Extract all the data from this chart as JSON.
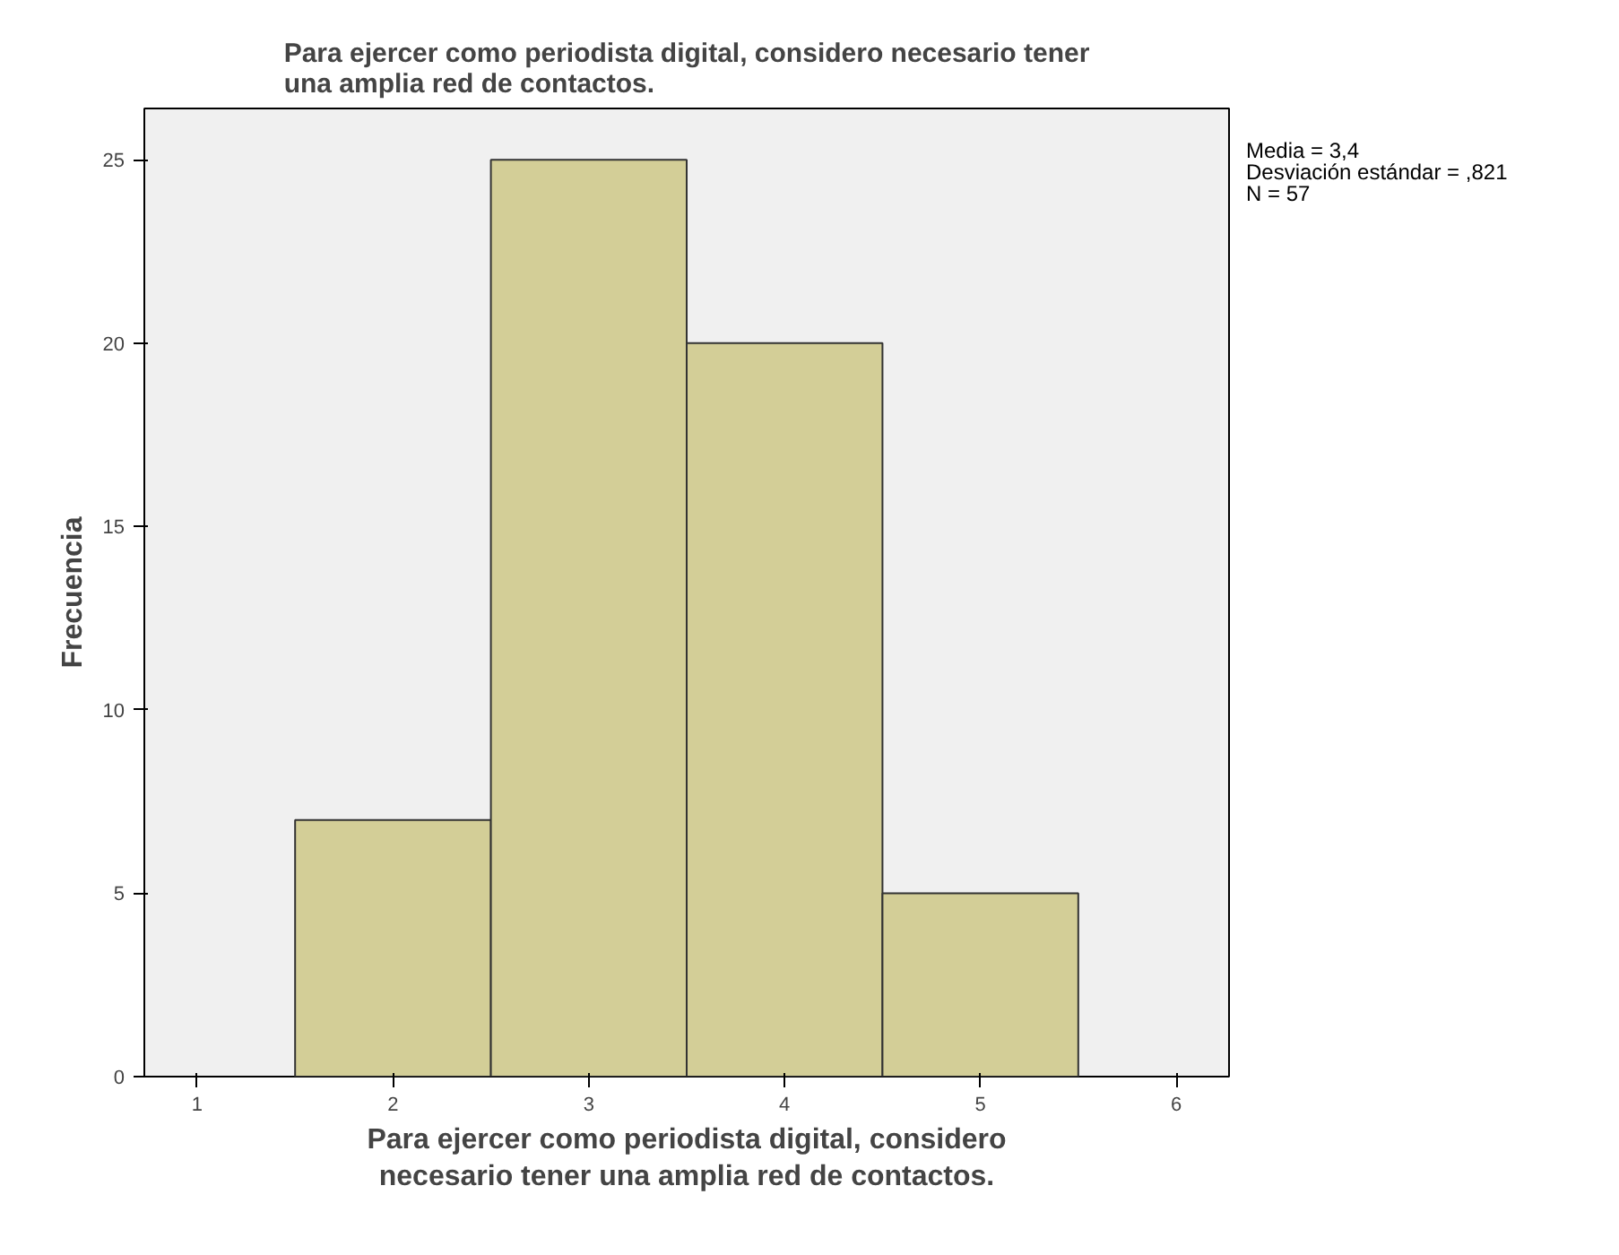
{
  "chart_data": {
    "type": "histogram",
    "title": "Para ejercer como periodista digital, considero necesario tener una amplia red de contactos.",
    "xlabel": "Para ejercer como periodista digital, considero necesario tener una amplia red de contactos.",
    "ylabel": "Frecuencia",
    "bins": [
      1.5,
      2.5,
      3.5,
      4.5,
      5.5
    ],
    "values": [
      7,
      25,
      20,
      5
    ],
    "color": "#d3ce97",
    "xlim": [
      0.73,
      6.27
    ],
    "ylim": [
      0,
      26.4
    ],
    "xticks": [
      1,
      2,
      3,
      4,
      5,
      6
    ],
    "yticks": [
      0,
      5,
      10,
      15,
      20,
      25
    ],
    "grid": false,
    "annotations": [
      "Media = 3,4",
      "Desviación estándar = ,821",
      "N = 57"
    ]
  }
}
